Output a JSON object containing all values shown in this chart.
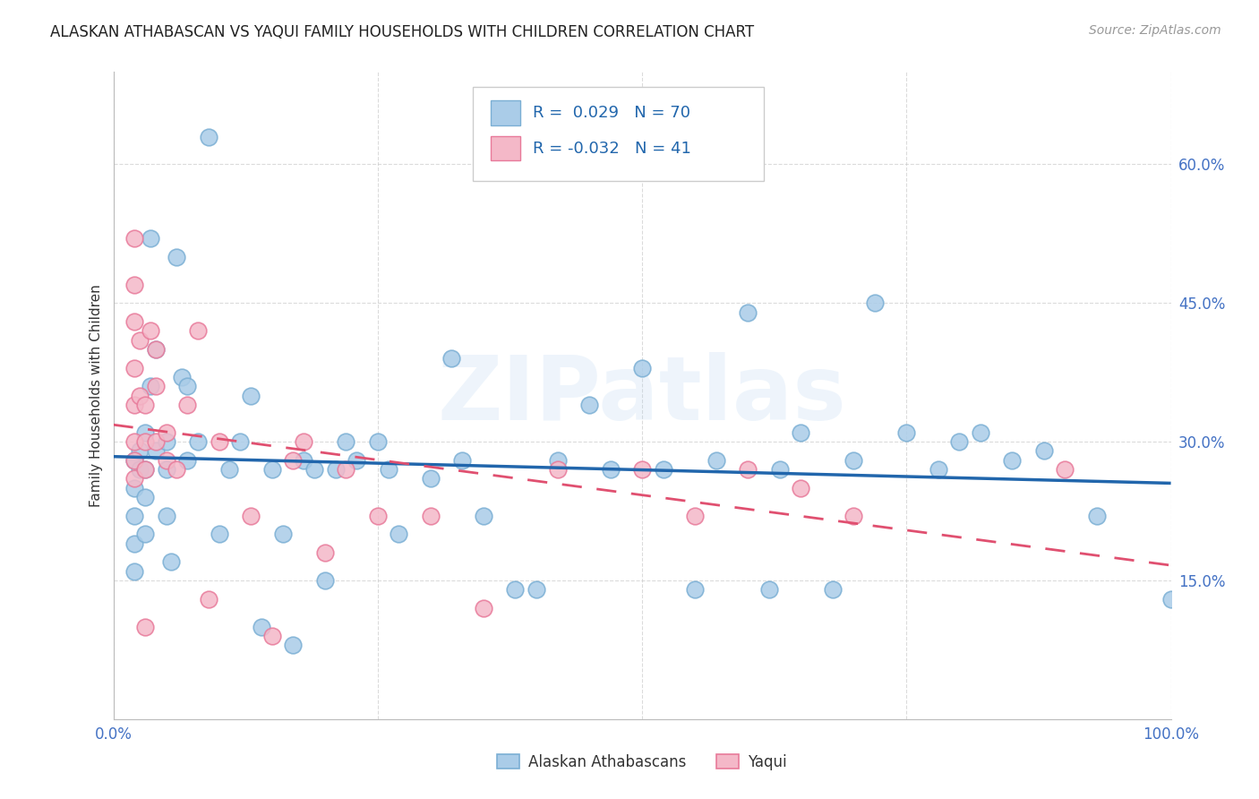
{
  "title": "ALASKAN ATHABASCAN VS YAQUI FAMILY HOUSEHOLDS WITH CHILDREN CORRELATION CHART",
  "source": "Source: ZipAtlas.com",
  "ylabel": "Family Households with Children",
  "xlim": [
    0,
    1.0
  ],
  "ylim": [
    0.0,
    0.7
  ],
  "ytick_vals": [
    0.15,
    0.3,
    0.45,
    0.6
  ],
  "ytick_labels": [
    "15.0%",
    "30.0%",
    "45.0%",
    "60.0%"
  ],
  "xtick_vals": [
    0.0,
    0.25,
    0.5,
    0.75,
    1.0
  ],
  "xtick_labels": [
    "0.0%",
    "",
    "",
    "",
    "100.0%"
  ],
  "alaskan_color": "#aacce8",
  "yaqui_color": "#f4b8c8",
  "alaskan_edge_color": "#7bafd4",
  "yaqui_edge_color": "#e87a9a",
  "alaskan_line_color": "#2166ac",
  "yaqui_line_color": "#e05070",
  "background_color": "#ffffff",
  "grid_color": "#cccccc",
  "R_alaskan": 0.029,
  "N_alaskan": 70,
  "R_yaqui": -0.032,
  "N_yaqui": 41,
  "alaskan_x": [
    0.02,
    0.02,
    0.02,
    0.02,
    0.02,
    0.025,
    0.025,
    0.03,
    0.03,
    0.03,
    0.03,
    0.035,
    0.035,
    0.04,
    0.04,
    0.05,
    0.05,
    0.05,
    0.055,
    0.06,
    0.065,
    0.07,
    0.07,
    0.08,
    0.09,
    0.1,
    0.11,
    0.12,
    0.13,
    0.14,
    0.15,
    0.16,
    0.17,
    0.18,
    0.19,
    0.2,
    0.21,
    0.22,
    0.23,
    0.25,
    0.26,
    0.27,
    0.3,
    0.32,
    0.33,
    0.35,
    0.38,
    0.4,
    0.42,
    0.45,
    0.47,
    0.5,
    0.52,
    0.55,
    0.57,
    0.6,
    0.62,
    0.63,
    0.65,
    0.68,
    0.7,
    0.72,
    0.75,
    0.78,
    0.8,
    0.82,
    0.85,
    0.88,
    0.93,
    1.0
  ],
  "alaskan_y": [
    0.28,
    0.25,
    0.22,
    0.19,
    0.16,
    0.29,
    0.27,
    0.31,
    0.27,
    0.24,
    0.2,
    0.52,
    0.36,
    0.4,
    0.29,
    0.3,
    0.27,
    0.22,
    0.17,
    0.5,
    0.37,
    0.36,
    0.28,
    0.3,
    0.63,
    0.2,
    0.27,
    0.3,
    0.35,
    0.1,
    0.27,
    0.2,
    0.08,
    0.28,
    0.27,
    0.15,
    0.27,
    0.3,
    0.28,
    0.3,
    0.27,
    0.2,
    0.26,
    0.39,
    0.28,
    0.22,
    0.14,
    0.14,
    0.28,
    0.34,
    0.27,
    0.38,
    0.27,
    0.14,
    0.28,
    0.44,
    0.14,
    0.27,
    0.31,
    0.14,
    0.28,
    0.45,
    0.31,
    0.27,
    0.3,
    0.31,
    0.28,
    0.29,
    0.22,
    0.13
  ],
  "yaqui_x": [
    0.02,
    0.02,
    0.02,
    0.02,
    0.02,
    0.02,
    0.02,
    0.02,
    0.025,
    0.025,
    0.03,
    0.03,
    0.03,
    0.03,
    0.035,
    0.04,
    0.04,
    0.04,
    0.05,
    0.05,
    0.06,
    0.07,
    0.08,
    0.09,
    0.1,
    0.13,
    0.15,
    0.17,
    0.18,
    0.2,
    0.22,
    0.25,
    0.3,
    0.35,
    0.42,
    0.5,
    0.55,
    0.6,
    0.65,
    0.7,
    0.9
  ],
  "yaqui_y": [
    0.52,
    0.47,
    0.43,
    0.38,
    0.34,
    0.3,
    0.28,
    0.26,
    0.41,
    0.35,
    0.34,
    0.3,
    0.27,
    0.1,
    0.42,
    0.4,
    0.36,
    0.3,
    0.31,
    0.28,
    0.27,
    0.34,
    0.42,
    0.13,
    0.3,
    0.22,
    0.09,
    0.28,
    0.3,
    0.18,
    0.27,
    0.22,
    0.22,
    0.12,
    0.27,
    0.27,
    0.22,
    0.27,
    0.25,
    0.22,
    0.27
  ],
  "legend_label_alaskan": "Alaskan Athabascans",
  "legend_label_yaqui": "Yaqui",
  "watermark": "ZIPatlas",
  "title_fontsize": 12,
  "label_fontsize": 11,
  "tick_fontsize": 12,
  "source_fontsize": 10
}
